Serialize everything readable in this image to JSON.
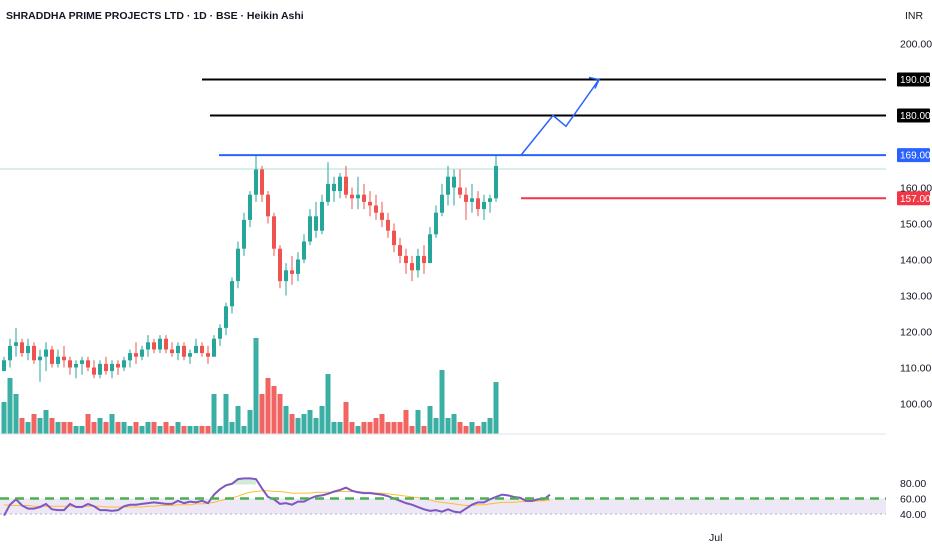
{
  "header": {
    "title": "SHRADDHA PRIME PROJECTS LTD · 1D · BSE · Heikin Ashi",
    "currency": "INR"
  },
  "colors": {
    "up": "#26a69a",
    "down": "#ef5350",
    "resistance": "#2962ff",
    "level": "#000000",
    "support": "#f23645",
    "rsi": "#7e57c2",
    "rsi_ma": "#fbc02d",
    "rsi_band": "#ede7f6",
    "dashed": "#4caf50"
  },
  "chart_data": [
    {
      "type": "candlestick",
      "price_axis": {
        "ylim": [
          92,
          209
        ],
        "ticks": [
          "100.00",
          "110.00",
          "120.00",
          "130.00",
          "140.00",
          "150.00",
          "160.00",
          "200.00"
        ],
        "tick_values": [
          100,
          110,
          120,
          130,
          140,
          150,
          160,
          200
        ]
      },
      "time_axis": {
        "labels": [
          "Jul"
        ]
      },
      "levels": [
        {
          "label": "190.00",
          "value": 190,
          "color": "#000000",
          "style": "horizontal-segment"
        },
        {
          "label": "180.00",
          "value": 180,
          "color": "#000000",
          "style": "horizontal-segment"
        },
        {
          "label": "169.00",
          "value": 169,
          "color": "#2962ff",
          "style": "horizontal-segment"
        },
        {
          "label": "157.00",
          "value": 157,
          "color": "#f23645",
          "style": "horizontal-segment"
        }
      ],
      "projection_arrow": {
        "points": [
          169,
          180,
          177,
          190
        ]
      },
      "candles": [
        [
          109,
          113,
          109,
          112,
          "up",
          8
        ],
        [
          112,
          118,
          110,
          116,
          "up",
          14
        ],
        [
          116,
          121,
          113,
          117,
          "up",
          10
        ],
        [
          117,
          118,
          113,
          114,
          "down",
          4
        ],
        [
          114,
          118,
          112,
          116,
          "up",
          3
        ],
        [
          116,
          117,
          111,
          112,
          "down",
          5
        ],
        [
          112,
          115,
          106,
          113,
          "up",
          4
        ],
        [
          113,
          117,
          109,
          115,
          "up",
          6
        ],
        [
          115,
          116,
          110,
          111,
          "down",
          4
        ],
        [
          111,
          115,
          110,
          113,
          "up",
          3
        ],
        [
          113,
          116,
          110,
          112,
          "down",
          3
        ],
        [
          112,
          113,
          108,
          110,
          "down",
          3
        ],
        [
          110,
          112,
          107,
          111,
          "up",
          2
        ],
        [
          111,
          113,
          108,
          112,
          "up",
          2
        ],
        [
          112,
          113,
          109,
          110,
          "down",
          5
        ],
        [
          110,
          112,
          107,
          108,
          "down",
          3
        ],
        [
          108,
          112,
          107,
          111,
          "up",
          4
        ],
        [
          111,
          113,
          108,
          109,
          "down",
          3
        ],
        [
          109,
          112,
          107,
          111,
          "up",
          5
        ],
        [
          111,
          112,
          108,
          110,
          "down",
          3
        ],
        [
          110,
          113,
          109,
          112,
          "up",
          3
        ],
        [
          112,
          115,
          110,
          114,
          "up",
          2
        ],
        [
          114,
          117,
          111,
          113,
          "down",
          3
        ],
        [
          113,
          116,
          112,
          115,
          "up",
          2
        ],
        [
          115,
          119,
          113,
          117,
          "up",
          3
        ],
        [
          117,
          118,
          114,
          115,
          "down",
          3
        ],
        [
          115,
          119,
          114,
          118,
          "up",
          2
        ],
        [
          118,
          119,
          114,
          115,
          "down",
          3
        ],
        [
          115,
          117,
          113,
          114,
          "down",
          2
        ],
        [
          114,
          117,
          112,
          116,
          "up",
          3
        ],
        [
          116,
          117,
          112,
          113,
          "down",
          2
        ],
        [
          113,
          115,
          111,
          114,
          "up",
          2
        ],
        [
          114,
          118,
          114,
          116,
          "up",
          2
        ],
        [
          116,
          117,
          113,
          114,
          "down",
          2
        ],
        [
          114,
          116,
          111,
          113,
          "down",
          2
        ],
        [
          113,
          119,
          113,
          118,
          "up",
          10
        ],
        [
          118,
          122,
          116,
          121,
          "up",
          2
        ],
        [
          121,
          128,
          119,
          127,
          "up",
          10
        ],
        [
          127,
          135,
          125,
          134,
          "up",
          3
        ],
        [
          134,
          145,
          132,
          143,
          "up",
          7
        ],
        [
          143,
          153,
          141,
          151,
          "up",
          2
        ],
        [
          151,
          159,
          149,
          158,
          "up",
          6
        ],
        [
          158,
          169,
          156,
          165,
          "up",
          24
        ],
        [
          165,
          166,
          156,
          158,
          "down",
          10
        ],
        [
          158,
          159,
          150,
          152,
          "down",
          14
        ],
        [
          152,
          153,
          141,
          143,
          "down",
          12
        ],
        [
          143,
          144,
          132,
          134,
          "down",
          10
        ],
        [
          134,
          139,
          130,
          137,
          "up",
          7
        ],
        [
          137,
          141,
          133,
          136,
          "down",
          5
        ],
        [
          136,
          142,
          134,
          140,
          "up",
          4
        ],
        [
          140,
          147,
          139,
          145,
          "up",
          5
        ],
        [
          145,
          154,
          144,
          152,
          "up",
          6
        ],
        [
          152,
          156,
          146,
          148,
          "up",
          4
        ],
        [
          148,
          158,
          147,
          156,
          "up",
          7
        ],
        [
          156,
          167,
          155,
          161,
          "up",
          15
        ],
        [
          161,
          163,
          156,
          159,
          "up",
          3
        ],
        [
          159,
          164,
          157,
          163,
          "up",
          3
        ],
        [
          163,
          166,
          157,
          158,
          "down",
          8
        ],
        [
          158,
          160,
          154,
          157,
          "down",
          3
        ],
        [
          157,
          163,
          154,
          158,
          "up",
          2
        ],
        [
          158,
          161,
          154,
          156,
          "down",
          3
        ],
        [
          156,
          159,
          152,
          155,
          "down",
          3
        ],
        [
          155,
          158,
          151,
          153,
          "down",
          4
        ],
        [
          153,
          156,
          149,
          151,
          "down",
          5
        ],
        [
          151,
          153,
          146,
          148,
          "down",
          3
        ],
        [
          148,
          150,
          142,
          144,
          "down",
          3
        ],
        [
          144,
          146,
          139,
          141,
          "down",
          3
        ],
        [
          141,
          143,
          136,
          139,
          "down",
          6
        ],
        [
          139,
          141,
          134,
          137,
          "down",
          2
        ],
        [
          137,
          143,
          135,
          141,
          "up",
          6
        ],
        [
          141,
          144,
          136,
          139,
          "down",
          2
        ],
        [
          139,
          149,
          139,
          147,
          "up",
          7
        ],
        [
          147,
          155,
          146,
          153,
          "up",
          4
        ],
        [
          153,
          161,
          152,
          158,
          "up",
          16
        ],
        [
          158,
          166,
          155,
          163,
          "up",
          4
        ],
        [
          163,
          165,
          155,
          160,
          "up",
          5
        ],
        [
          160,
          165,
          157,
          158,
          "down",
          3
        ],
        [
          158,
          160,
          151,
          156,
          "down",
          2
        ],
        [
          156,
          161,
          153,
          157,
          "up",
          3
        ],
        [
          157,
          159,
          152,
          154,
          "down",
          2
        ],
        [
          154,
          158,
          151,
          156,
          "up",
          3
        ],
        [
          156,
          158,
          153,
          157,
          "up",
          4
        ],
        [
          157,
          169,
          156,
          166,
          "up",
          13
        ]
      ]
    },
    {
      "type": "line",
      "name": "RSI",
      "y_axis": {
        "ylim": [
          35,
          90
        ],
        "ticks": [
          "40.00",
          "60.00",
          "80.00"
        ],
        "tick_values": [
          40,
          60,
          80
        ]
      },
      "band": [
        40,
        60
      ],
      "dashed_level": 60,
      "series": [
        {
          "name": "RSI",
          "values": [
            38,
            52,
            59,
            51,
            47,
            47,
            49,
            53,
            46,
            45,
            45,
            53,
            49,
            49,
            53,
            50,
            45,
            45,
            44,
            45,
            50,
            52,
            52,
            53,
            54,
            55,
            54,
            53,
            53,
            57,
            54,
            56,
            55,
            57,
            54,
            65,
            72,
            77,
            79,
            85,
            86,
            86,
            85,
            73,
            62,
            59,
            53,
            54,
            52,
            56,
            56,
            60,
            63,
            64,
            66,
            69,
            71,
            74,
            70,
            68,
            67,
            67,
            66,
            65,
            63,
            60,
            57,
            54,
            52,
            49,
            46,
            44,
            45,
            43,
            46,
            43,
            42,
            47,
            52,
            55,
            55,
            59,
            62,
            65,
            64,
            62,
            61,
            57,
            57,
            59,
            59,
            65
          ]
        },
        {
          "name": "RSI-MA",
          "values": [
            52,
            51,
            51,
            51,
            51,
            50,
            50,
            50,
            50,
            50,
            50,
            50,
            50,
            50,
            50,
            50,
            50,
            49,
            49,
            49,
            49,
            49,
            49,
            49,
            50,
            50,
            51,
            51,
            51,
            52,
            52,
            52,
            53,
            53,
            54,
            55,
            57,
            59,
            61,
            63,
            66,
            68,
            69,
            70,
            70,
            69,
            69,
            68,
            67,
            67,
            67,
            67,
            68,
            68,
            68,
            68,
            69,
            69,
            69,
            69,
            68,
            68,
            67,
            67,
            66,
            65,
            64,
            63,
            62,
            61,
            60,
            58,
            56,
            55,
            54,
            53,
            52,
            51,
            51,
            52,
            52,
            53,
            54,
            55,
            55,
            55,
            56,
            56,
            56,
            57,
            57,
            58
          ]
        }
      ]
    }
  ]
}
